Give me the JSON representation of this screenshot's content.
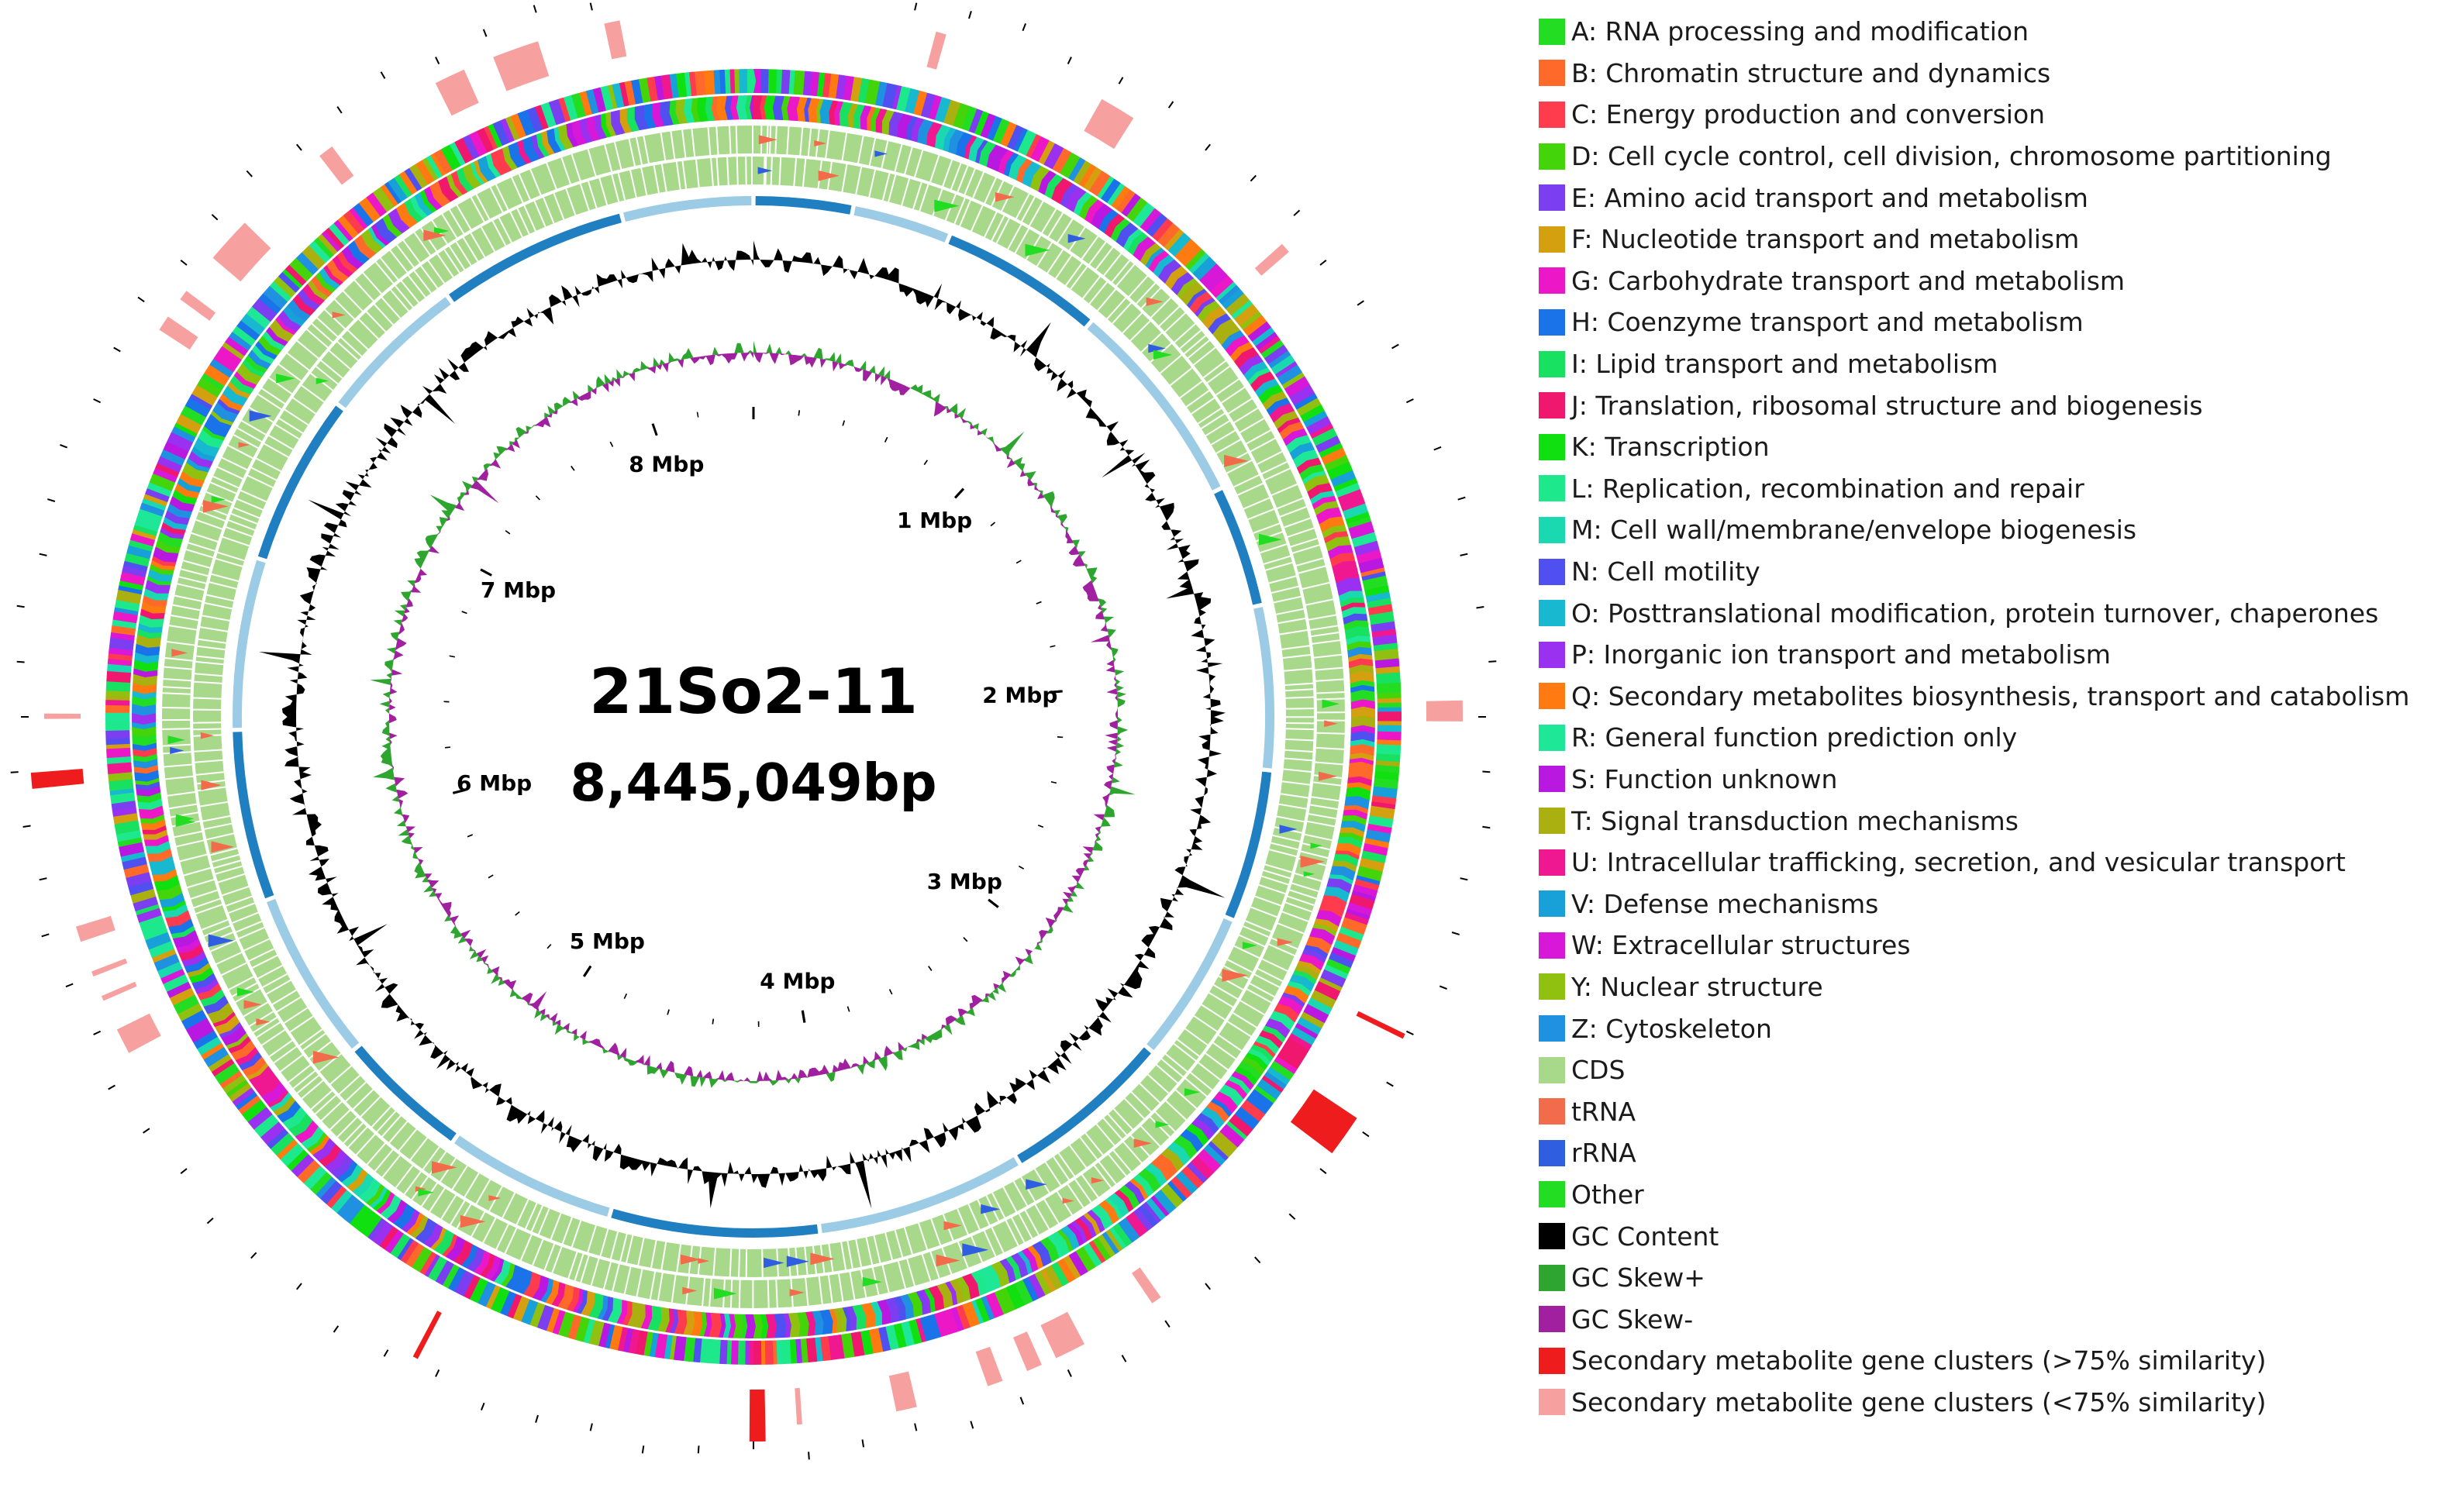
{
  "genome": {
    "name": "21So2-11",
    "size_label": "8,445,049bp",
    "length_bp": 8445049
  },
  "position_labels": [
    "1 Mbp",
    "2 Mbp",
    "3 Mbp",
    "4 Mbp",
    "5 Mbp",
    "6 Mbp",
    "7 Mbp",
    "8 Mbp"
  ],
  "colors": {
    "cds": "#a8d98a",
    "trna": "#f26b4b",
    "rrna": "#2f5fe0",
    "gc_content": "#000000",
    "gc_skew_plus": "#2ea52e",
    "gc_skew_minus": "#a020a0",
    "contig_dark": "#1f7fc0",
    "contig_light": "#9ccbe6",
    "cluster_high": "#ee1c1c",
    "cluster_low": "#f7a0a0"
  },
  "legend": [
    {
      "label": "A: RNA processing and modification",
      "color": "#22dd22"
    },
    {
      "label": "B: Chromatin structure and dynamics",
      "color": "#ff6a2a"
    },
    {
      "label": "C: Energy production and conversion",
      "color": "#ff3b4e"
    },
    {
      "label": "D: Cell cycle control, cell division, chromosome partitioning",
      "color": "#44d40a"
    },
    {
      "label": "E: Amino acid transport and metabolism",
      "color": "#7b3ef0"
    },
    {
      "label": "F: Nucleotide transport and metabolism",
      "color": "#d4a010"
    },
    {
      "label": "G: Carbohydrate transport and metabolism",
      "color": "#ec18c8"
    },
    {
      "label": "H: Coenzyme transport and metabolism",
      "color": "#1a73e8"
    },
    {
      "label": "I: Lipid transport and metabolism",
      "color": "#18e060"
    },
    {
      "label": "J: Translation, ribosomal structure and biogenesis",
      "color": "#f0186e"
    },
    {
      "label": "K: Transcription",
      "color": "#10e010"
    },
    {
      "label": "L: Replication, recombination and repair",
      "color": "#1ee88c"
    },
    {
      "label": "M: Cell wall/membrane/envelope biogenesis",
      "color": "#1ad8b0"
    },
    {
      "label": "N: Cell motility",
      "color": "#5050f0"
    },
    {
      "label": "O: Posttranslational modification, protein turnover, chaperones",
      "color": "#18b8d0"
    },
    {
      "label": "P: Inorganic ion transport and metabolism",
      "color": "#9a30f0"
    },
    {
      "label": "Q: Secondary metabolites biosynthesis, transport and catabolism",
      "color": "#ff7a10"
    },
    {
      "label": "R: General function prediction only",
      "color": "#1ee898"
    },
    {
      "label": "S: Function unknown",
      "color": "#b818e0"
    },
    {
      "label": "T: Signal transduction mechanisms",
      "color": "#aab010"
    },
    {
      "label": "U: Intracellular trafficking, secretion, and vesicular transport",
      "color": "#f01890"
    },
    {
      "label": "V: Defense mechanisms",
      "color": "#18a0d8"
    },
    {
      "label": "W: Extracellular structures",
      "color": "#d818d8"
    },
    {
      "label": "Y: Nuclear structure",
      "color": "#90c010"
    },
    {
      "label": "Z: Cytoskeleton",
      "color": "#2090e0"
    },
    {
      "label": "CDS",
      "color": "#a8d98a"
    },
    {
      "label": "tRNA",
      "color": "#f26b4b"
    },
    {
      "label": "rRNA",
      "color": "#2f5fe0"
    },
    {
      "label": "Other",
      "color": "#22dd22"
    },
    {
      "label": "GC Content",
      "color": "#000000"
    },
    {
      "label": "GC Skew+",
      "color": "#2ea52e"
    },
    {
      "label": "GC Skew-",
      "color": "#a020a0"
    },
    {
      "label": "Secondary metabolite gene clusters (>75% similarity)",
      "color": "#ee1c1c"
    },
    {
      "label": "Secondary metabolite gene clusters (<75% similarity)",
      "color": "#f7a0a0"
    }
  ],
  "clusters": [
    {
      "start_mbp": 0.35,
      "end_mbp": 0.37,
      "similarity": "low"
    },
    {
      "start_mbp": 0.69,
      "end_mbp": 0.76,
      "similarity": "low"
    },
    {
      "start_mbp": 1.13,
      "end_mbp": 1.15,
      "similarity": "low"
    },
    {
      "start_mbp": 2.08,
      "end_mbp": 2.12,
      "similarity": "low"
    },
    {
      "start_mbp": 2.72,
      "end_mbp": 2.73,
      "similarity": "high"
    },
    {
      "start_mbp": 2.9,
      "end_mbp": 2.98,
      "similarity": "high"
    },
    {
      "start_mbp": 3.4,
      "end_mbp": 3.42,
      "similarity": "low"
    },
    {
      "start_mbp": 3.57,
      "end_mbp": 3.63,
      "similarity": "low"
    },
    {
      "start_mbp": 3.66,
      "end_mbp": 3.69,
      "similarity": "low"
    },
    {
      "start_mbp": 3.74,
      "end_mbp": 3.77,
      "similarity": "low"
    },
    {
      "start_mbp": 3.91,
      "end_mbp": 3.95,
      "similarity": "low"
    },
    {
      "start_mbp": 4.13,
      "end_mbp": 4.14,
      "similarity": "low"
    },
    {
      "start_mbp": 4.2,
      "end_mbp": 4.23,
      "similarity": "high"
    },
    {
      "start_mbp": 4.87,
      "end_mbp": 4.88,
      "similarity": "high"
    },
    {
      "start_mbp": 5.67,
      "end_mbp": 5.72,
      "similarity": "low"
    },
    {
      "start_mbp": 5.78,
      "end_mbp": 5.79,
      "similarity": "low"
    },
    {
      "start_mbp": 5.83,
      "end_mbp": 5.84,
      "similarity": "low"
    },
    {
      "start_mbp": 5.9,
      "end_mbp": 5.93,
      "similarity": "low"
    },
    {
      "start_mbp": 6.2,
      "end_mbp": 6.23,
      "similarity": "high"
    },
    {
      "start_mbp": 6.33,
      "end_mbp": 6.34,
      "similarity": "low"
    },
    {
      "start_mbp": 7.11,
      "end_mbp": 7.14,
      "similarity": "low"
    },
    {
      "start_mbp": 7.18,
      "end_mbp": 7.2,
      "similarity": "low"
    },
    {
      "start_mbp": 7.28,
      "end_mbp": 7.37,
      "similarity": "low"
    },
    {
      "start_mbp": 7.56,
      "end_mbp": 7.59,
      "similarity": "low"
    },
    {
      "start_mbp": 7.82,
      "end_mbp": 7.88,
      "similarity": "low"
    },
    {
      "start_mbp": 7.94,
      "end_mbp": 8.03,
      "similarity": "low"
    },
    {
      "start_mbp": 8.16,
      "end_mbp": 8.19,
      "similarity": "low"
    }
  ],
  "contigs_mbp": [
    0,
    0.26,
    0.52,
    0.95,
    1.5,
    1.82,
    2.25,
    2.65,
    3.05,
    3.5,
    4.05,
    4.6,
    5.05,
    5.4,
    5.85,
    6.3,
    6.75,
    7.2,
    7.6,
    8.1,
    8.445
  ]
}
